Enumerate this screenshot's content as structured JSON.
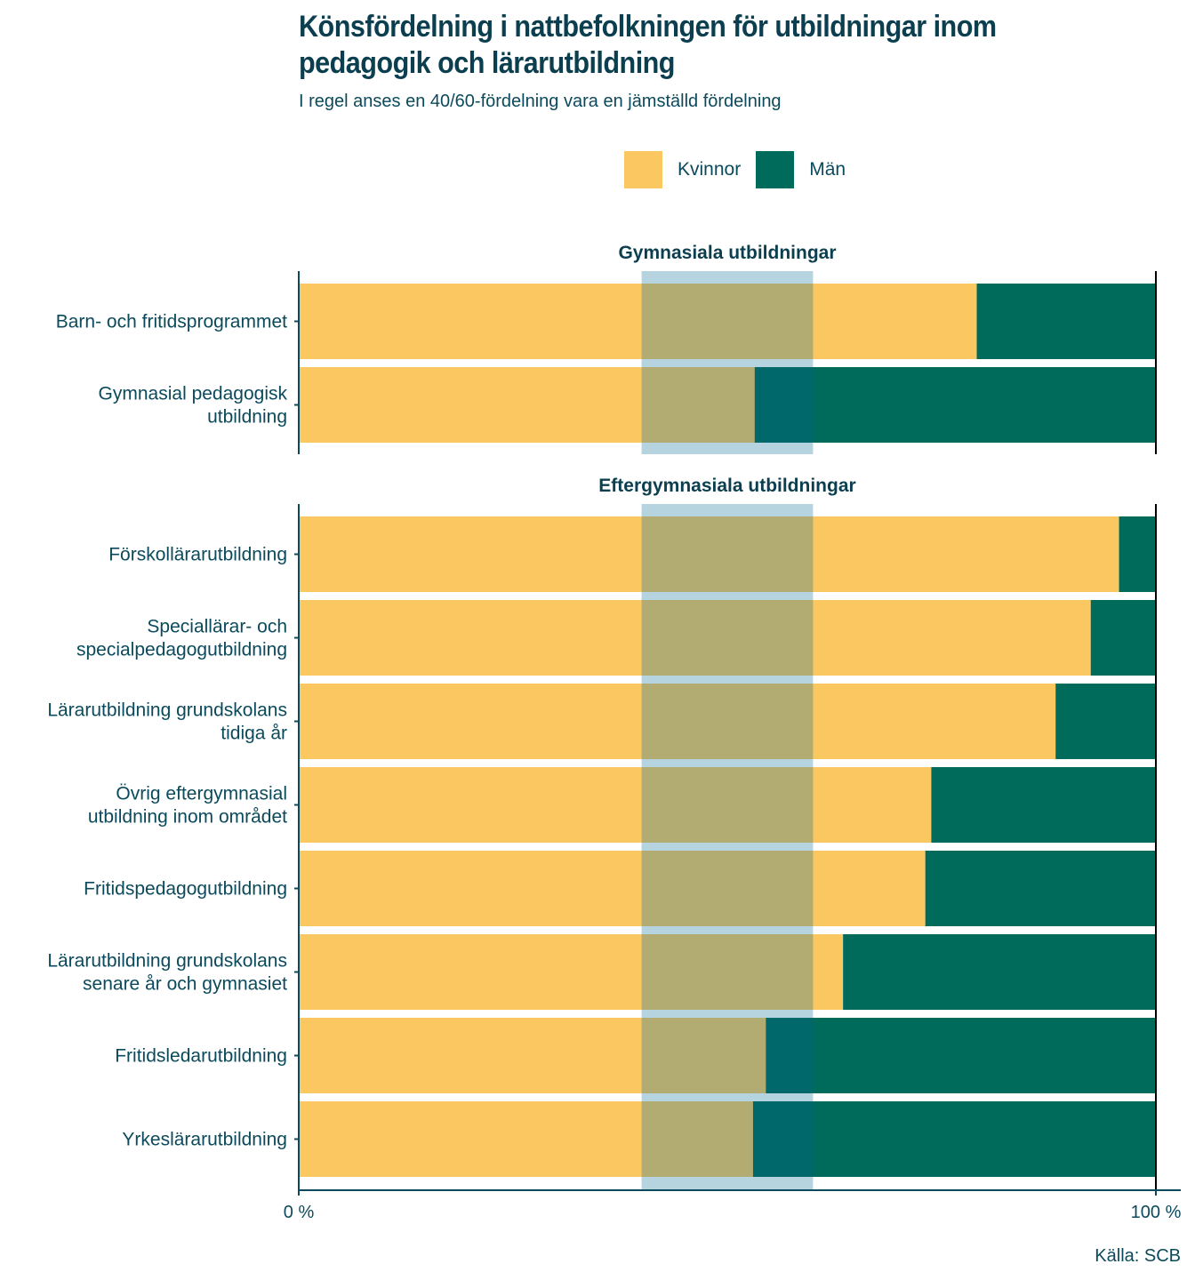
{
  "title": "Könsfördelning i nattbefolkningen för utbildningar inom pedagogik och lärarutbildning",
  "subtitle": "I regel anses en 40/60-fördelning vara en jämställd fördelning",
  "source": "Källa: SCB",
  "colors": {
    "women": "#FAC760",
    "men": "#006A5B",
    "band": "#B5D4E0",
    "band_over_women": "#B2AB72",
    "band_over_men": "#00676A",
    "axis": "#0b4a5c",
    "text": "#0b4a5c"
  },
  "chart_data": {
    "type": "bar",
    "orientation": "horizontal",
    "stacked": true,
    "title": "Könsfördelning i nattbefolkningen för utbildningar inom pedagogik och lärarutbildning",
    "subtitle": "I regel anses en 40/60-fördelning vara en jämställd fördelning",
    "xlabel": "",
    "ylabel": "",
    "xlim": [
      0,
      100
    ],
    "x_ticks": [
      {
        "value": 0,
        "label": "0 %"
      },
      {
        "value": 100,
        "label": "100 %"
      }
    ],
    "legend": {
      "position": "top",
      "entries": [
        {
          "name": "Kvinnor",
          "color": "#FAC760"
        },
        {
          "name": "Män",
          "color": "#006A5B"
        }
      ]
    },
    "reference_band": {
      "from": 40,
      "to": 60,
      "label": "40/60-fördelning"
    },
    "series_names": [
      "Kvinnor",
      "Män"
    ],
    "panels": [
      {
        "title": "Gymnasiala utbildningar",
        "categories": [
          "Barn- och fritidsprogrammet",
          "Gymnasial pedagogisk\nutbildning"
        ],
        "series": [
          {
            "name": "Kvinnor",
            "values": [
              79.1,
              53.2
            ]
          },
          {
            "name": "Män",
            "values": [
              20.9,
              46.8
            ]
          }
        ]
      },
      {
        "title": "Eftergymnasiala utbildningar",
        "categories": [
          "Förskollärarutbildning",
          "Speciallärar- och\nspecialpedagogutbildning",
          "Lärarutbildning grundskolans\ntidiga år",
          "Övrig eftergymnasial\nutbildning inom området",
          "Fritidspedagogutbildning",
          "Lärarutbildning grundskolans\nsenare år och gymnasiet",
          "Fritidsledarutbildning",
          "Yrkeslärarutbildning"
        ],
        "series": [
          {
            "name": "Kvinnor",
            "values": [
              95.7,
              92.4,
              88.3,
              73.8,
              73.1,
              63.5,
              54.5,
              53.0
            ]
          },
          {
            "name": "Män",
            "values": [
              4.3,
              7.6,
              11.7,
              26.2,
              26.9,
              36.5,
              45.5,
              47.0
            ]
          }
        ]
      }
    ],
    "source": "Källa: SCB"
  }
}
